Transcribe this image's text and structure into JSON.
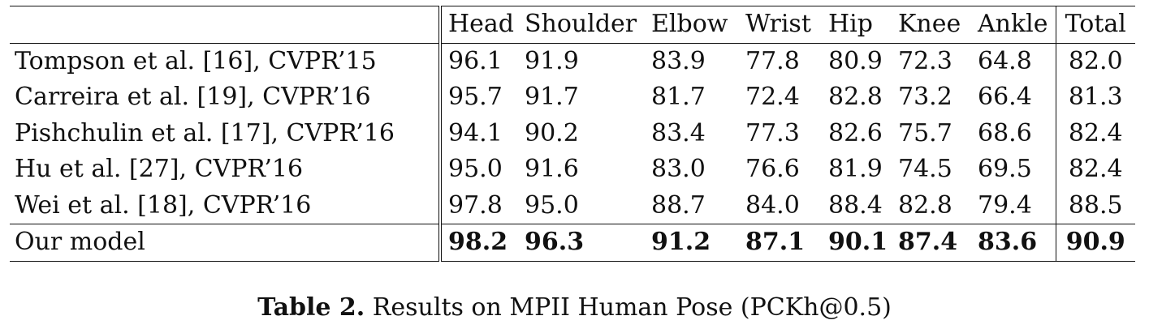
{
  "table": {
    "columns": [
      "Head",
      "Shoulder",
      "Elbow",
      "Wrist",
      "Hip",
      "Knee",
      "Ankle",
      "Total"
    ],
    "rows": [
      {
        "method": "Tompson et al. [16], CVPR’15",
        "values": [
          "96.1",
          "91.9",
          "83.9",
          "77.8",
          "80.9",
          "72.3",
          "64.8",
          "82.0"
        ]
      },
      {
        "method": "Carreira et al. [19], CVPR’16",
        "values": [
          "95.7",
          "91.7",
          "81.7",
          "72.4",
          "82.8",
          "73.2",
          "66.4",
          "81.3"
        ]
      },
      {
        "method": "Pishchulin et al. [17], CVPR’16",
        "values": [
          "94.1",
          "90.2",
          "83.4",
          "77.3",
          "82.6",
          "75.7",
          "68.6",
          "82.4"
        ]
      },
      {
        "method": "Hu et al. [27], CVPR’16",
        "values": [
          "95.0",
          "91.6",
          "83.0",
          "76.6",
          "81.9",
          "74.5",
          "69.5",
          "82.4"
        ]
      },
      {
        "method": "Wei et al. [18], CVPR’16",
        "values": [
          "97.8",
          "95.0",
          "88.7",
          "84.0",
          "88.4",
          "82.8",
          "79.4",
          "88.5"
        ]
      },
      {
        "method": "Our model",
        "values": [
          "98.2",
          "96.3",
          "91.2",
          "87.1",
          "90.1",
          "87.4",
          "83.6",
          "90.9"
        ],
        "bold": true
      }
    ]
  },
  "caption": {
    "label": "Table 2.",
    "text": " Results on MPII Human Pose (PCKh@0.5)"
  }
}
